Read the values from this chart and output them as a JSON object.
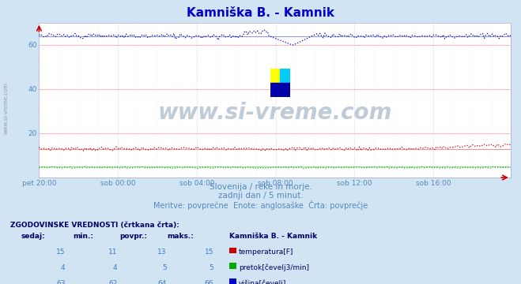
{
  "title": "Kamniška B. - Kamnik",
  "title_color": "#0000cc",
  "bg_color": "#d0e4f4",
  "plot_bg_color": "#ffffff",
  "grid_color_h": "#ffaaaa",
  "grid_color_v": "#ccccff",
  "xlabel_color": "#5588bb",
  "text_color": "#5588bb",
  "watermark": "www.si-vreme.com",
  "subtitle1": "Slovenija / reke in morje.",
  "subtitle2": "zadnji dan / 5 minut.",
  "subtitle3": "Meritve: povprečne  Enote: anglosaške  Črta: povprečje",
  "x_labels": [
    "pet 20:00",
    "sob 00:00",
    "sob 04:00",
    "sob 08:00",
    "sob 12:00",
    "sob 16:00"
  ],
  "x_ticks_idx": [
    0,
    48,
    96,
    144,
    192,
    240
  ],
  "ylim": [
    0,
    70
  ],
  "yticks": [
    20,
    40,
    60
  ],
  "n_points": 288,
  "temp_val": 15,
  "temp_min": 11,
  "temp_avg": 13,
  "temp_max": 15,
  "flow_val": 4,
  "flow_min": 4,
  "flow_avg": 5,
  "flow_max": 5,
  "height_val": 63,
  "height_min": 62,
  "height_avg": 64,
  "height_max": 66,
  "temp_color": "#cc0000",
  "flow_color": "#00aa00",
  "height_color": "#0000cc",
  "table_header_color": "#000066",
  "table_val_color": "#4477cc",
  "legend_title": "Kamniška B. - Kamnik",
  "legend_items": [
    "temperatura[F]",
    "pretok[čevelj3/min]",
    "višina[čevelj]"
  ],
  "legend_colors": [
    "#cc0000",
    "#00aa00",
    "#0000cc"
  ],
  "sidebar_text": "www.si-vreme.com",
  "logo_colors": [
    "#ffff00",
    "#00ccff",
    "#0000aa"
  ],
  "arrow_color": "#cc0000"
}
